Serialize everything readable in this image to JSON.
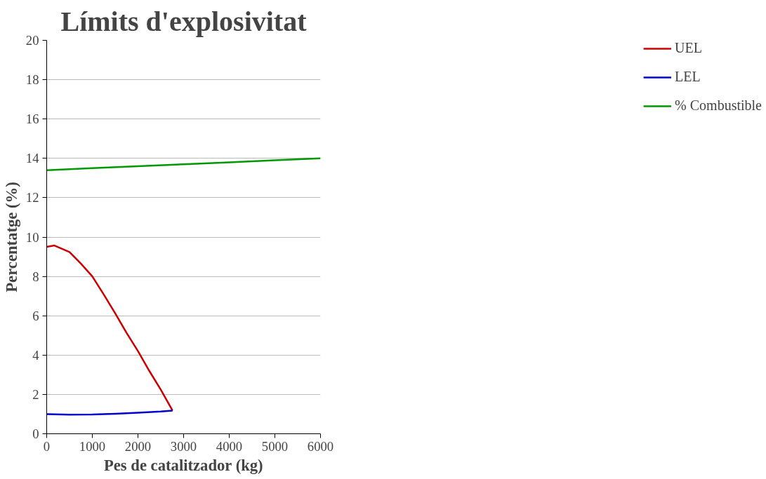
{
  "chart_data": {
    "type": "line",
    "title": "Límits d'explosivitat",
    "xlabel": "Pes de catalitzador (kg)",
    "ylabel": "Percentatge (%)",
    "xlim": [
      0,
      6000
    ],
    "xticks": [
      0,
      1000,
      2000,
      3000,
      4000,
      5000,
      6000
    ],
    "ylim": [
      0,
      20
    ],
    "yticks": [
      0,
      2,
      4,
      6,
      8,
      10,
      12,
      14,
      16,
      18,
      20
    ],
    "grid": "y",
    "legend": "right",
    "marker": "none",
    "line_style": "solid",
    "series": [
      {
        "name": "UEL",
        "color": "#cc0000",
        "x": [
          0,
          170,
          500,
          750,
          1000,
          1250,
          1500,
          1750,
          2000,
          2250,
          2500,
          2757
        ],
        "values": [
          9.5,
          9.57,
          9.24,
          8.65,
          8.0,
          7.08,
          6.13,
          5.13,
          4.2,
          3.19,
          2.24,
          1.18
        ]
      },
      {
        "name": "LEL",
        "color": "#0000cc",
        "x": [
          0,
          500,
          1000,
          1500,
          2000,
          2500,
          2757
        ],
        "values": [
          1.0,
          0.97,
          0.98,
          1.02,
          1.07,
          1.13,
          1.18
        ]
      },
      {
        "name": "% Combustible",
        "color": "#009900",
        "x": [
          0,
          1000,
          2000,
          3000,
          4000,
          5000,
          6000
        ],
        "values": [
          13.4,
          13.5,
          13.6,
          13.7,
          13.8,
          13.9,
          14.0
        ]
      }
    ]
  }
}
